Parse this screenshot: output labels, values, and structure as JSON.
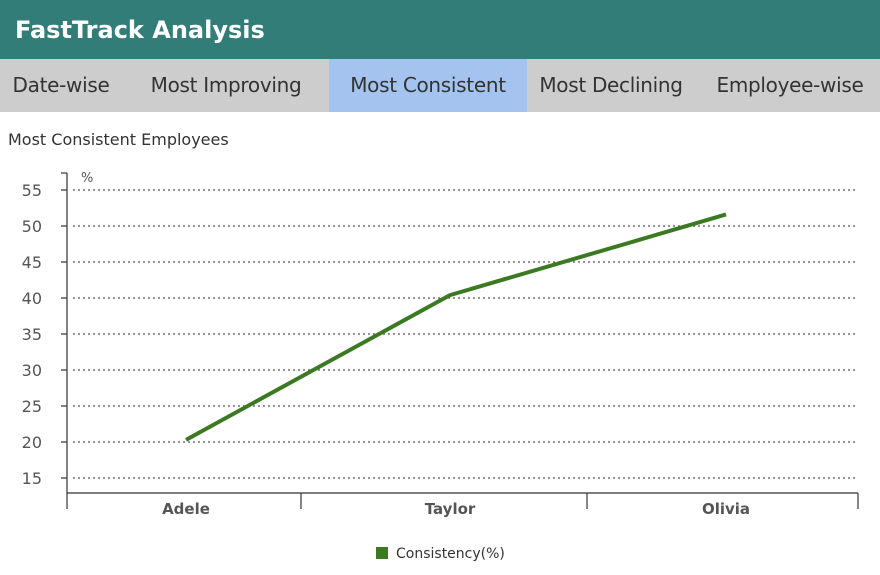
{
  "app": {
    "title": "FastTrack Analysis"
  },
  "tabs": [
    {
      "label": "Date-wise",
      "active": false
    },
    {
      "label": "Most Improving",
      "active": false
    },
    {
      "label": "Most Consistent",
      "active": true
    },
    {
      "label": "Most Declining",
      "active": false
    },
    {
      "label": "Employee-wise",
      "active": false
    }
  ],
  "colors": {
    "header": "#337d79",
    "tab_bar": "#cdcdcd",
    "tab_active": "#a4c3ef",
    "series": "#3b7a22"
  },
  "chart_data": {
    "type": "line",
    "title": "Most Consistent Employees",
    "categories": [
      "Adele",
      "Taylor",
      "Olivia"
    ],
    "series": [
      {
        "name": "Consistency(%)",
        "values": [
          20.3,
          40.4,
          51.6
        ]
      }
    ],
    "ylabel": "%",
    "xlabel": "",
    "ylim": [
      15,
      55
    ],
    "yticks": [
      15,
      20,
      25,
      30,
      35,
      40,
      45,
      50,
      55
    ],
    "grid": true,
    "legend": "bottom"
  }
}
